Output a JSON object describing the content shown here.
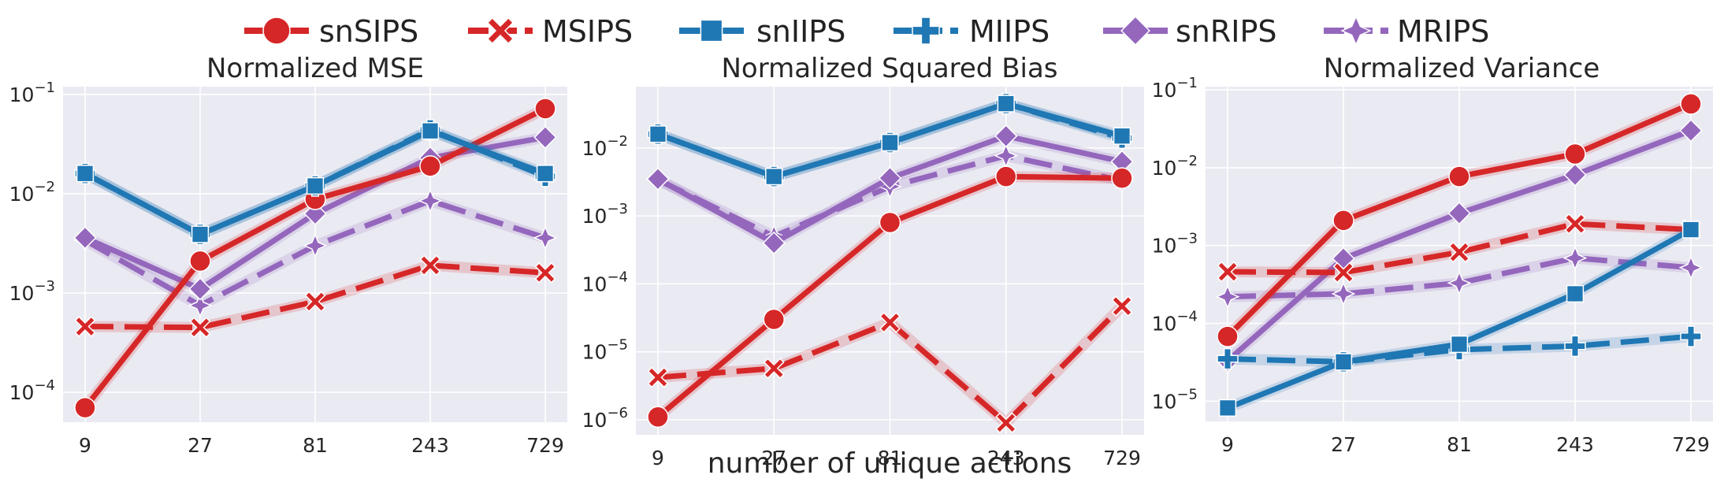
{
  "legend": [
    {
      "name": "snSIPS",
      "color": "#d62728",
      "dash": "solid",
      "marker": "circle"
    },
    {
      "name": "MSIPS",
      "color": "#d62728",
      "dash": "dashed",
      "marker": "x"
    },
    {
      "name": "snIIPS",
      "color": "#1f77b4",
      "dash": "solid",
      "marker": "square"
    },
    {
      "name": "MIIPS",
      "color": "#1f77b4",
      "dash": "dashed",
      "marker": "plus"
    },
    {
      "name": "snRIPS",
      "color": "#9467bd",
      "dash": "solid",
      "marker": "diamond"
    },
    {
      "name": "MRIPS",
      "color": "#9467bd",
      "dash": "dashed",
      "marker": "star4"
    }
  ],
  "shared_xlabel": "number of unique actions",
  "chart_data": [
    {
      "type": "line",
      "title": "Normalized MSE",
      "xscale": "log3",
      "yscale": "log",
      "ylim": [
        5e-05,
        0.12
      ],
      "x": [
        9,
        27,
        81,
        243,
        729
      ],
      "xticklabels": [
        "9",
        "27",
        "81",
        "243",
        "729"
      ],
      "yticks": [
        0.0001,
        0.001,
        0.01,
        0.1
      ],
      "yticklabels": [
        "10",
        "10",
        "10",
        "10"
      ],
      "ytickexps": [
        "−4",
        "−3",
        "−2",
        "−1"
      ],
      "grid": true,
      "series": [
        {
          "name": "snSIPS",
          "values": [
            7e-05,
            0.0021,
            0.0088,
            0.019,
            0.072
          ]
        },
        {
          "name": "MSIPS",
          "values": [
            0.00046,
            0.00045,
            0.00082,
            0.0019,
            0.0016
          ]
        },
        {
          "name": "snIIPS",
          "values": [
            0.016,
            0.0039,
            0.012,
            0.043,
            0.016
          ]
        },
        {
          "name": "MIIPS",
          "values": [
            0.016,
            0.0039,
            0.012,
            0.044,
            0.015
          ]
        },
        {
          "name": "snRIPS",
          "values": [
            0.0036,
            0.0011,
            0.0063,
            0.023,
            0.037
          ]
        },
        {
          "name": "MRIPS",
          "values": [
            0.0034,
            0.00075,
            0.003,
            0.0085,
            0.0036
          ]
        }
      ]
    },
    {
      "type": "line",
      "title": "Normalized Squared Bias",
      "xscale": "log3",
      "yscale": "log",
      "ylim": [
        6e-07,
        0.08
      ],
      "x": [
        9,
        27,
        81,
        243,
        729
      ],
      "xticklabels": [
        "9",
        "27",
        "81",
        "243",
        "729"
      ],
      "yticks": [
        1e-06,
        1e-05,
        0.0001,
        0.001,
        0.01
      ],
      "yticklabels": [
        "10",
        "10",
        "10",
        "10",
        "10"
      ],
      "ytickexps": [
        "−6",
        "−5",
        "−4",
        "−3",
        "−2"
      ],
      "grid": true,
      "series": [
        {
          "name": "snSIPS",
          "values": [
            1.1e-06,
            3e-05,
            0.0008,
            0.0038,
            0.0036
          ]
        },
        {
          "name": "MSIPS",
          "values": [
            4.2e-06,
            5.7e-06,
            2.7e-05,
            9e-07,
            4.7e-05
          ]
        },
        {
          "name": "snIIPS",
          "values": [
            0.016,
            0.0038,
            0.012,
            0.045,
            0.015
          ]
        },
        {
          "name": "MIIPS",
          "values": [
            0.016,
            0.0038,
            0.012,
            0.045,
            0.014
          ]
        },
        {
          "name": "snRIPS",
          "values": [
            0.0035,
            0.0004,
            0.0036,
            0.015,
            0.0063
          ]
        },
        {
          "name": "MRIPS",
          "values": [
            0.0034,
            0.0005,
            0.0027,
            0.0077,
            0.0033
          ]
        }
      ]
    },
    {
      "type": "line",
      "title": "Normalized Variance",
      "xscale": "log3",
      "yscale": "log",
      "ylim": [
        5.5e-06,
        0.11
      ],
      "x": [
        9,
        27,
        81,
        243,
        729
      ],
      "xticklabels": [
        "9",
        "27",
        "81",
        "243",
        "729"
      ],
      "yticks": [
        1e-05,
        0.0001,
        0.001,
        0.01,
        0.1
      ],
      "yticklabels": [
        "10",
        "10",
        "10",
        "10",
        "10"
      ],
      "ytickexps": [
        "−5",
        "−4",
        "−3",
        "−2",
        "−1"
      ],
      "grid": true,
      "series": [
        {
          "name": "snSIPS",
          "values": [
            6.8e-05,
            0.0021,
            0.0077,
            0.015,
            0.066
          ]
        },
        {
          "name": "MSIPS",
          "values": [
            0.00046,
            0.00045,
            0.00082,
            0.0019,
            0.0016
          ]
        },
        {
          "name": "snIIPS",
          "values": [
            8.2e-06,
            3.2e-05,
            5.4e-05,
            0.00024,
            0.0016
          ]
        },
        {
          "name": "MIIPS",
          "values": [
            3.5e-05,
            3.2e-05,
            4.6e-05,
            5.1e-05,
            6.8e-05
          ]
        },
        {
          "name": "snRIPS",
          "values": [
            3.3e-05,
            0.00068,
            0.0026,
            0.0081,
            0.03
          ]
        },
        {
          "name": "MRIPS",
          "values": [
            0.00022,
            0.00024,
            0.00033,
            0.00069,
            0.00052
          ]
        }
      ]
    }
  ]
}
